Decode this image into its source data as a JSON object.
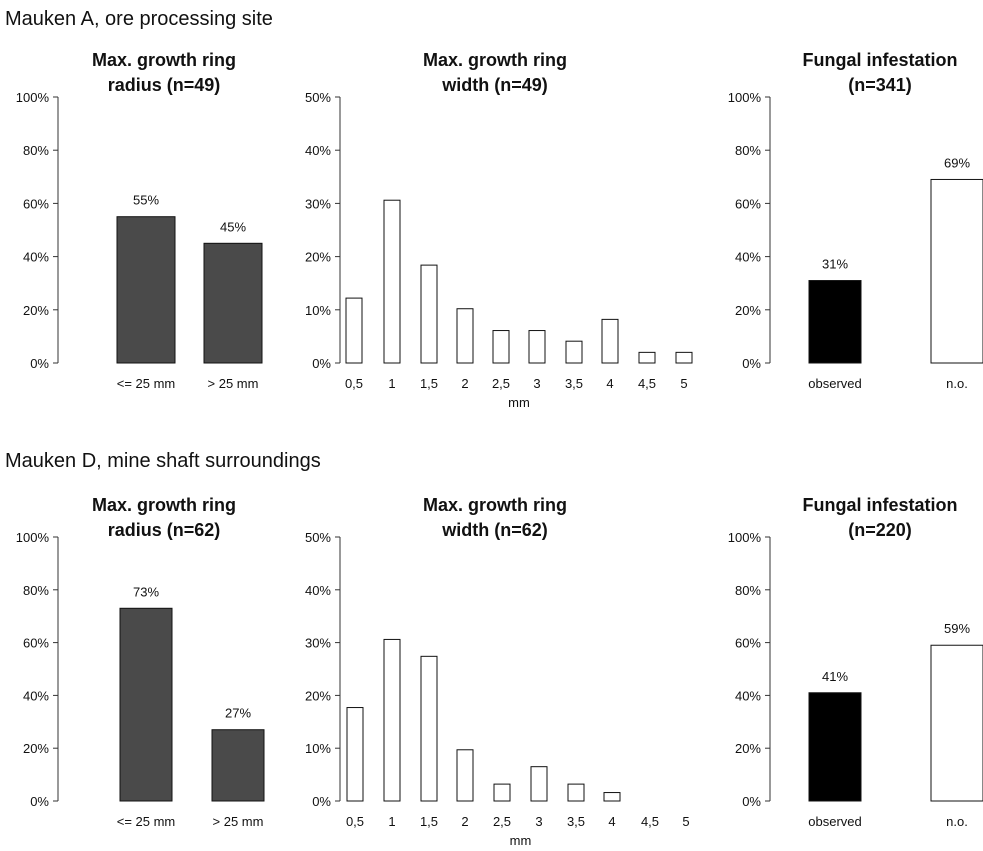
{
  "sections": [
    {
      "title": "Mauken A, ore processing site",
      "charts": [
        {
          "type": "bar",
          "title_lines": [
            "Max. growth ring",
            "radius (n=49)"
          ],
          "categories": [
            "<= 25 mm",
            "> 25 mm"
          ],
          "values": [
            55,
            45
          ],
          "value_labels": [
            "55%",
            "45%"
          ],
          "xlabel": "",
          "ylim": [
            0,
            100
          ],
          "yticks": [
            "0%",
            "20%",
            "40%",
            "60%",
            "80%",
            "100%"
          ],
          "bar_colors": [
            "#4a4a4a",
            "#4a4a4a"
          ]
        },
        {
          "type": "bar",
          "title_lines": [
            "Max. growth ring",
            "width (n=49)"
          ],
          "categories": [
            "0,5",
            "1",
            "1,5",
            "2",
            "2,5",
            "3",
            "3,5",
            "4",
            "4,5",
            "5"
          ],
          "values": [
            12.2,
            30.6,
            18.4,
            10.2,
            6.1,
            6.1,
            4.1,
            8.2,
            2.0,
            2.0
          ],
          "value_labels": [],
          "xlabel": "mm",
          "ylim": [
            0,
            50
          ],
          "yticks": [
            "0%",
            "10%",
            "20%",
            "30%",
            "40%",
            "50%"
          ],
          "bar_colors": [
            "#ffffff"
          ]
        },
        {
          "type": "bar",
          "title_lines": [
            "Fungal infestation",
            "(n=341)"
          ],
          "categories": [
            "observed",
            "n.o."
          ],
          "values": [
            31,
            69
          ],
          "value_labels": [
            "31%",
            "69%"
          ],
          "xlabel": "",
          "ylim": [
            0,
            100
          ],
          "yticks": [
            "0%",
            "20%",
            "40%",
            "60%",
            "80%",
            "100%"
          ],
          "bar_colors": [
            "#000000",
            "#ffffff"
          ]
        }
      ]
    },
    {
      "title": "Mauken D, mine shaft surroundings",
      "charts": [
        {
          "type": "bar",
          "title_lines": [
            "Max. growth ring",
            "radius (n=62)"
          ],
          "categories": [
            "<= 25 mm",
            "> 25 mm"
          ],
          "values": [
            73,
            27
          ],
          "value_labels": [
            "73%",
            "27%"
          ],
          "xlabel": "",
          "ylim": [
            0,
            100
          ],
          "yticks": [
            "0%",
            "20%",
            "40%",
            "60%",
            "80%",
            "100%"
          ],
          "bar_colors": [
            "#4a4a4a",
            "#4a4a4a"
          ]
        },
        {
          "type": "bar",
          "title_lines": [
            "Max. growth ring",
            "width (n=62)"
          ],
          "categories": [
            "0,5",
            "1",
            "1,5",
            "2",
            "2,5",
            "3",
            "3,5",
            "4",
            "4,5",
            "5"
          ],
          "values": [
            17.7,
            30.6,
            27.4,
            9.7,
            3.2,
            6.5,
            3.2,
            1.6,
            0,
            0
          ],
          "value_labels": [],
          "xlabel": "mm",
          "ylim": [
            0,
            50
          ],
          "yticks": [
            "0%",
            "10%",
            "20%",
            "30%",
            "40%",
            "50%"
          ],
          "bar_colors": [
            "#ffffff"
          ]
        },
        {
          "type": "bar",
          "title_lines": [
            "Fungal infestation",
            "(n=220)"
          ],
          "categories": [
            "observed",
            "n.o."
          ],
          "values": [
            41,
            59
          ],
          "value_labels": [
            "41%",
            "59%"
          ],
          "xlabel": "",
          "ylim": [
            0,
            100
          ],
          "yticks": [
            "0%",
            "20%",
            "40%",
            "60%",
            "80%",
            "100%"
          ],
          "bar_colors": [
            "#000000",
            "#ffffff"
          ]
        }
      ]
    }
  ],
  "chart_data": [
    {
      "type": "bar",
      "title": "Max. growth ring radius (n=49)",
      "categories": [
        "<= 25 mm",
        "> 25 mm"
      ],
      "values": [
        55,
        45
      ],
      "ylim": [
        0,
        100
      ]
    },
    {
      "type": "bar",
      "title": "Max. growth ring width (n=49)",
      "xlabel": "mm",
      "categories": [
        "0,5",
        "1",
        "1,5",
        "2",
        "2,5",
        "3",
        "3,5",
        "4",
        "4,5",
        "5"
      ],
      "values": [
        12.2,
        30.6,
        18.4,
        10.2,
        6.1,
        6.1,
        4.1,
        8.2,
        2.0,
        2.0
      ],
      "ylim": [
        0,
        50
      ]
    },
    {
      "type": "bar",
      "title": "Fungal infestation (n=341)",
      "categories": [
        "observed",
        "n.o."
      ],
      "values": [
        31,
        69
      ],
      "ylim": [
        0,
        100
      ]
    },
    {
      "type": "bar",
      "title": "Max. growth ring radius (n=62)",
      "categories": [
        "<= 25 mm",
        "> 25 mm"
      ],
      "values": [
        73,
        27
      ],
      "ylim": [
        0,
        100
      ]
    },
    {
      "type": "bar",
      "title": "Max. growth ring width (n=62)",
      "xlabel": "mm",
      "categories": [
        "0,5",
        "1",
        "1,5",
        "2",
        "2,5",
        "3",
        "3,5",
        "4",
        "4,5",
        "5"
      ],
      "values": [
        17.7,
        30.6,
        27.4,
        9.7,
        3.2,
        6.5,
        3.2,
        1.6,
        0,
        0
      ],
      "ylim": [
        0,
        50
      ]
    },
    {
      "type": "bar",
      "title": "Fungal infestation (n=220)",
      "categories": [
        "observed",
        "n.o."
      ],
      "values": [
        41,
        59
      ],
      "ylim": [
        0,
        100
      ]
    }
  ]
}
